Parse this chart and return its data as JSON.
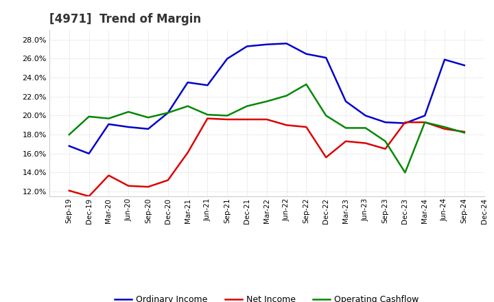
{
  "title": "[4971]  Trend of Margin",
  "x_labels": [
    "Sep-19",
    "Dec-19",
    "Mar-20",
    "Jun-20",
    "Sep-20",
    "Dec-20",
    "Mar-21",
    "Jun-21",
    "Sep-21",
    "Dec-21",
    "Mar-22",
    "Jun-22",
    "Sep-22",
    "Dec-22",
    "Mar-23",
    "Jun-23",
    "Sep-23",
    "Dec-23",
    "Mar-24",
    "Jun-24",
    "Sep-24",
    "Dec-24"
  ],
  "ordinary_income": [
    16.8,
    16.0,
    19.1,
    18.8,
    18.6,
    20.3,
    23.5,
    23.2,
    26.0,
    27.3,
    27.5,
    27.6,
    26.5,
    26.1,
    21.5,
    20.0,
    19.3,
    19.2,
    20.0,
    25.9,
    25.3,
    null
  ],
  "net_income": [
    12.1,
    11.5,
    13.7,
    12.6,
    12.5,
    13.2,
    16.1,
    19.7,
    19.6,
    19.6,
    19.6,
    19.0,
    18.8,
    15.6,
    17.3,
    17.1,
    16.5,
    19.3,
    19.3,
    18.6,
    18.3,
    null
  ],
  "operating_cashflow": [
    18.0,
    19.9,
    19.7,
    20.4,
    19.8,
    20.3,
    21.0,
    20.1,
    20.0,
    21.0,
    21.5,
    22.1,
    23.3,
    20.0,
    18.7,
    18.7,
    17.3,
    14.0,
    19.3,
    18.8,
    18.2,
    null
  ],
  "ylim": [
    11.5,
    29.0
  ],
  "yticks": [
    12.0,
    14.0,
    16.0,
    18.0,
    20.0,
    22.0,
    24.0,
    26.0,
    28.0
  ],
  "line_color_ordinary": "#0000cc",
  "line_color_net": "#dd0000",
  "line_color_cashflow": "#008800",
  "line_width": 1.8,
  "background_color": "#ffffff",
  "plot_bg_color": "#ffffff",
  "grid_color": "#bbbbbb",
  "legend_labels": [
    "Ordinary Income",
    "Net Income",
    "Operating Cashflow"
  ]
}
